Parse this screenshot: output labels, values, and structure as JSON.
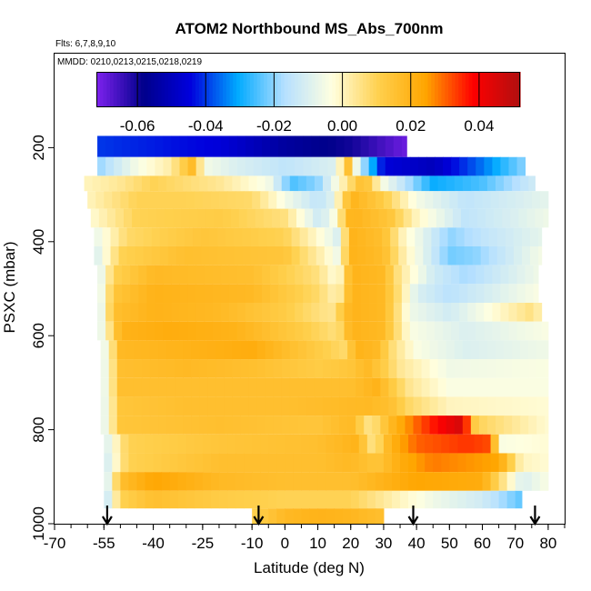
{
  "chart_data": {
    "type": "heatmap",
    "title": "ATOM2 Northbound MS_Abs_700nm",
    "subtitle": "Flts: 6,7,8,9,10",
    "annotation": "MMDD: 0210,0213,0215,0218,0219",
    "xlabel": "Latitude (deg N)",
    "ylabel": "PSXC (mbar)",
    "xlim": [
      -70,
      85
    ],
    "ylim": [
      1000,
      0
    ],
    "x_ticks": [
      -70,
      -55,
      -40,
      -25,
      -10,
      0,
      10,
      20,
      30,
      40,
      50,
      60,
      70,
      80
    ],
    "x_tick_labels": [
      "-70",
      "-55",
      "-40",
      "-25",
      "-10",
      "0",
      "10",
      "20",
      "30",
      "40",
      "50",
      "60",
      "70",
      "80"
    ],
    "y_ticks": [
      200,
      400,
      600,
      800,
      1000
    ],
    "y_tick_labels": [
      "200",
      "400",
      "600",
      "800",
      "1000"
    ],
    "colorbar": {
      "range": [
        -0.072,
        0.052
      ],
      "ticks": [
        -0.06,
        -0.04,
        -0.02,
        0.0,
        0.02,
        0.04
      ],
      "tick_labels": [
        "-0.06",
        "-0.04",
        "-0.02",
        "0.00",
        "0.02",
        "0.04"
      ],
      "colors": [
        "#7f22ef",
        "#00008b",
        "#0000dd",
        "#00aaff",
        "#b6e0ff",
        "#ffffe0",
        "#ffd04d",
        "#ffa500",
        "#ff0000",
        "#b01010"
      ]
    },
    "flight_arrows_lat": [
      -54,
      -8,
      39,
      76
    ],
    "bands": [
      {
        "p": 195,
        "lat_min": -57,
        "lat_max": 37,
        "stops": [
          [
            -57,
            -0.04
          ],
          [
            -20,
            -0.045
          ],
          [
            0,
            -0.055
          ],
          [
            20,
            -0.06
          ],
          [
            37,
            -0.07
          ]
        ]
      },
      {
        "p": 245,
        "lat_min": -57,
        "lat_max": 73,
        "stops": [
          [
            -57,
            -0.02
          ],
          [
            -45,
            -0.005
          ],
          [
            -35,
            0.002
          ],
          [
            -27,
            0.02
          ],
          [
            -25,
            -0.005
          ],
          [
            -15,
            -0.01
          ],
          [
            0,
            -0.015
          ],
          [
            15,
            -0.01
          ],
          [
            20,
            0.02
          ],
          [
            22,
            -0.01
          ],
          [
            30,
            -0.045
          ],
          [
            45,
            -0.05
          ],
          [
            60,
            -0.035
          ],
          [
            73,
            -0.02
          ]
        ]
      },
      {
        "p": 275,
        "lat_min": -61,
        "lat_max": 76,
        "stops": [
          [
            -61,
            0.0
          ],
          [
            -50,
            0.004
          ],
          [
            -40,
            0.01
          ],
          [
            -20,
            0.004
          ],
          [
            -5,
            -0.005
          ],
          [
            2,
            -0.025
          ],
          [
            10,
            -0.02
          ],
          [
            19,
            0.005
          ],
          [
            24,
            0.018
          ],
          [
            30,
            -0.005
          ],
          [
            45,
            -0.03
          ],
          [
            60,
            -0.025
          ],
          [
            76,
            -0.012
          ]
        ]
      },
      {
        "p": 310,
        "lat_min": -60,
        "lat_max": 80,
        "stops": [
          [
            -60,
            0.0
          ],
          [
            -45,
            0.01
          ],
          [
            -30,
            0.01
          ],
          [
            -10,
            0.008
          ],
          [
            0,
            -0.005
          ],
          [
            10,
            -0.015
          ],
          [
            14,
            -0.01
          ],
          [
            20,
            0.02
          ],
          [
            30,
            0.012
          ],
          [
            40,
            -0.005
          ],
          [
            55,
            -0.015
          ],
          [
            80,
            -0.008
          ]
        ]
      },
      {
        "p": 350,
        "lat_min": -59,
        "lat_max": 80,
        "stops": [
          [
            -59,
            -0.002
          ],
          [
            -45,
            0.01
          ],
          [
            -20,
            0.012
          ],
          [
            0,
            0.006
          ],
          [
            10,
            -0.012
          ],
          [
            14,
            -0.008
          ],
          [
            20,
            0.02
          ],
          [
            32,
            0.014
          ],
          [
            40,
            0.0
          ],
          [
            55,
            -0.015
          ],
          [
            70,
            -0.01
          ],
          [
            80,
            -0.006
          ]
        ]
      },
      {
        "p": 390,
        "lat_min": -58,
        "lat_max": 78,
        "stops": [
          [
            -58,
            -0.008
          ],
          [
            -48,
            0.008
          ],
          [
            -25,
            0.014
          ],
          [
            0,
            0.01
          ],
          [
            12,
            -0.004
          ],
          [
            16,
            -0.01
          ],
          [
            20,
            0.02
          ],
          [
            30,
            0.016
          ],
          [
            36,
            0.0
          ],
          [
            50,
            -0.02
          ],
          [
            60,
            -0.015
          ],
          [
            78,
            -0.008
          ]
        ]
      },
      {
        "p": 430,
        "lat_min": -58,
        "lat_max": 78,
        "stops": [
          [
            -58,
            -0.012
          ],
          [
            -50,
            0.01
          ],
          [
            -30,
            0.016
          ],
          [
            0,
            0.014
          ],
          [
            12,
            0.0
          ],
          [
            16,
            -0.006
          ],
          [
            20,
            0.02
          ],
          [
            30,
            0.017
          ],
          [
            36,
            0.002
          ],
          [
            50,
            -0.022
          ],
          [
            58,
            -0.02
          ],
          [
            78,
            -0.005
          ]
        ]
      },
      {
        "p": 470,
        "lat_min": -57,
        "lat_max": 77,
        "stops": [
          [
            -57,
            -0.012
          ],
          [
            -52,
            0.01
          ],
          [
            -40,
            0.018
          ],
          [
            -10,
            0.016
          ],
          [
            10,
            0.006
          ],
          [
            16,
            -0.004
          ],
          [
            20,
            0.02
          ],
          [
            30,
            0.018
          ],
          [
            35,
            0.004
          ],
          [
            45,
            -0.012
          ],
          [
            55,
            -0.018
          ],
          [
            77,
            -0.006
          ]
        ]
      },
      {
        "p": 510,
        "lat_min": -57,
        "lat_max": 77,
        "stops": [
          [
            -57,
            -0.012
          ],
          [
            -52,
            0.014
          ],
          [
            -40,
            0.02
          ],
          [
            -10,
            0.018
          ],
          [
            10,
            0.008
          ],
          [
            16,
            0.0
          ],
          [
            20,
            0.02
          ],
          [
            30,
            0.018
          ],
          [
            34,
            0.008
          ],
          [
            40,
            -0.01
          ],
          [
            50,
            -0.016
          ],
          [
            77,
            -0.004
          ]
        ]
      },
      {
        "p": 550,
        "lat_min": -57,
        "lat_max": 78,
        "stops": [
          [
            -57,
            -0.014
          ],
          [
            -52,
            0.016
          ],
          [
            -40,
            0.02
          ],
          [
            -20,
            0.018
          ],
          [
            0,
            0.012
          ],
          [
            14,
            0.004
          ],
          [
            20,
            0.02
          ],
          [
            30,
            0.018
          ],
          [
            33,
            0.01
          ],
          [
            38,
            -0.006
          ],
          [
            50,
            -0.012
          ],
          [
            75,
            0.006
          ],
          [
            78,
            0.0
          ]
        ]
      },
      {
        "p": 590,
        "lat_min": -57,
        "lat_max": 80,
        "stops": [
          [
            -57,
            -0.012
          ],
          [
            -50,
            0.02
          ],
          [
            -35,
            0.022
          ],
          [
            -15,
            0.02
          ],
          [
            5,
            0.012
          ],
          [
            16,
            0.006
          ],
          [
            20,
            0.02
          ],
          [
            30,
            0.018
          ],
          [
            33,
            0.01
          ],
          [
            38,
            -0.004
          ],
          [
            55,
            -0.01
          ],
          [
            80,
            -0.004
          ]
        ]
      },
      {
        "p": 630,
        "lat_min": -56,
        "lat_max": 80,
        "stops": [
          [
            -56,
            -0.012
          ],
          [
            -50,
            0.018
          ],
          [
            -30,
            0.02
          ],
          [
            -10,
            0.022
          ],
          [
            10,
            0.012
          ],
          [
            18,
            0.008
          ],
          [
            22,
            0.02
          ],
          [
            28,
            0.018
          ],
          [
            33,
            0.006
          ],
          [
            40,
            -0.004
          ],
          [
            55,
            -0.01
          ],
          [
            80,
            -0.006
          ]
        ]
      },
      {
        "p": 670,
        "lat_min": -56,
        "lat_max": 80,
        "stops": [
          [
            -56,
            -0.012
          ],
          [
            -50,
            0.016
          ],
          [
            -30,
            0.018
          ],
          [
            -10,
            0.016
          ],
          [
            10,
            0.012
          ],
          [
            20,
            0.014
          ],
          [
            25,
            0.018
          ],
          [
            30,
            0.012
          ],
          [
            35,
            0.004
          ],
          [
            50,
            -0.006
          ],
          [
            80,
            -0.004
          ]
        ]
      },
      {
        "p": 710,
        "lat_min": -56,
        "lat_max": 80,
        "stops": [
          [
            -56,
            -0.012
          ],
          [
            -50,
            0.016
          ],
          [
            -30,
            0.016
          ],
          [
            0,
            0.016
          ],
          [
            20,
            0.016
          ],
          [
            28,
            0.02
          ],
          [
            33,
            0.012
          ],
          [
            38,
            0.004
          ],
          [
            50,
            -0.004
          ],
          [
            80,
            -0.004
          ]
        ]
      },
      {
        "p": 750,
        "lat_min": -56,
        "lat_max": 80,
        "stops": [
          [
            -56,
            -0.012
          ],
          [
            -50,
            0.014
          ],
          [
            -30,
            0.016
          ],
          [
            0,
            0.016
          ],
          [
            25,
            0.018
          ],
          [
            32,
            0.016
          ],
          [
            38,
            0.008
          ],
          [
            50,
            0.0
          ],
          [
            80,
            -0.002
          ]
        ]
      },
      {
        "p": 790,
        "lat_min": -56,
        "lat_max": 80,
        "stops": [
          [
            -56,
            -0.012
          ],
          [
            -50,
            0.014
          ],
          [
            -20,
            0.016
          ],
          [
            10,
            0.014
          ],
          [
            20,
            0.018
          ],
          [
            26,
            0.004
          ],
          [
            32,
            0.018
          ],
          [
            40,
            0.03
          ],
          [
            48,
            0.04
          ],
          [
            53,
            0.045
          ],
          [
            55,
            0.036
          ],
          [
            58,
            0.01
          ],
          [
            80,
            -0.002
          ]
        ]
      },
      {
        "p": 830,
        "lat_min": -55,
        "lat_max": 80,
        "stops": [
          [
            -55,
            -0.012
          ],
          [
            -48,
            0.01
          ],
          [
            -20,
            0.014
          ],
          [
            10,
            0.016
          ],
          [
            22,
            0.02
          ],
          [
            27,
            0.004
          ],
          [
            32,
            0.02
          ],
          [
            40,
            0.03
          ],
          [
            55,
            0.034
          ],
          [
            62,
            0.032
          ],
          [
            66,
            -0.004
          ],
          [
            80,
            -0.002
          ]
        ]
      },
      {
        "p": 870,
        "lat_min": -55,
        "lat_max": 80,
        "stops": [
          [
            -55,
            -0.014
          ],
          [
            -48,
            0.01
          ],
          [
            -20,
            0.016
          ],
          [
            10,
            0.016
          ],
          [
            20,
            0.018
          ],
          [
            28,
            0.014
          ],
          [
            35,
            0.022
          ],
          [
            45,
            0.028
          ],
          [
            55,
            0.026
          ],
          [
            65,
            0.024
          ],
          [
            72,
            0.0
          ],
          [
            80,
            -0.002
          ]
        ]
      },
      {
        "p": 910,
        "lat_min": -55,
        "lat_max": 80,
        "stops": [
          [
            -55,
            -0.016
          ],
          [
            -50,
            0.016
          ],
          [
            -40,
            0.024
          ],
          [
            -20,
            0.018
          ],
          [
            0,
            0.016
          ],
          [
            20,
            0.016
          ],
          [
            30,
            0.02
          ],
          [
            40,
            0.024
          ],
          [
            60,
            0.022
          ],
          [
            72,
            -0.01
          ],
          [
            80,
            -0.004
          ]
        ]
      },
      {
        "p": 950,
        "lat_min": -55,
        "lat_max": 72,
        "stops": [
          [
            -55,
            -0.018
          ],
          [
            -50,
            0.01
          ],
          [
            -40,
            0.016
          ],
          [
            -20,
            0.012
          ],
          [
            0,
            0.01
          ],
          [
            20,
            0.01
          ],
          [
            35,
            0.0
          ],
          [
            45,
            -0.006
          ],
          [
            60,
            -0.012
          ],
          [
            72,
            -0.024
          ]
        ]
      },
      {
        "p": 985,
        "lat_min": -10,
        "lat_max": 30,
        "stops": [
          [
            -10,
            0.01
          ],
          [
            0,
            0.018
          ],
          [
            10,
            0.02
          ],
          [
            20,
            0.019
          ],
          [
            30,
            0.016
          ]
        ]
      }
    ]
  }
}
